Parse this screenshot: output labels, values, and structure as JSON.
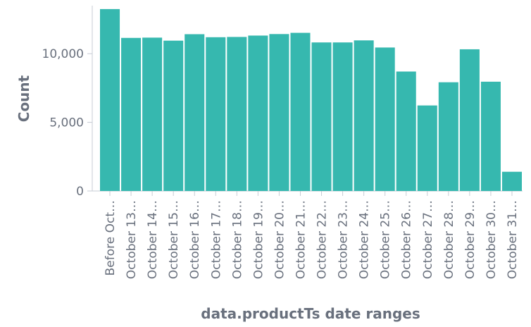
{
  "chart_data": {
    "type": "bar",
    "title": "",
    "xlabel": "data.productTs date ranges",
    "ylabel": "Count",
    "ylim": [
      0,
      13500
    ],
    "yticks": [
      0,
      5000,
      10000
    ],
    "ytick_labels": [
      "0",
      "5,000",
      "10,000"
    ],
    "grid": false,
    "legend": "none",
    "bar_color": "#36b8af",
    "categories": [
      "Before Oct…",
      "October 13…",
      "October 14…",
      "October 15…",
      "October 16…",
      "October 17…",
      "October 18…",
      "October 19…",
      "October 20…",
      "October 21…",
      "October 22…",
      "October 23…",
      "October 24…",
      "October 25…",
      "October 26…",
      "October 27…",
      "October 28…",
      "October 29…",
      "October 30…",
      "October 31…"
    ],
    "values": [
      13250,
      11150,
      11170,
      10950,
      11420,
      11200,
      11220,
      11320,
      11430,
      11520,
      10820,
      10820,
      10970,
      10450,
      8700,
      6230,
      7920,
      10320,
      7960,
      1400
    ]
  }
}
